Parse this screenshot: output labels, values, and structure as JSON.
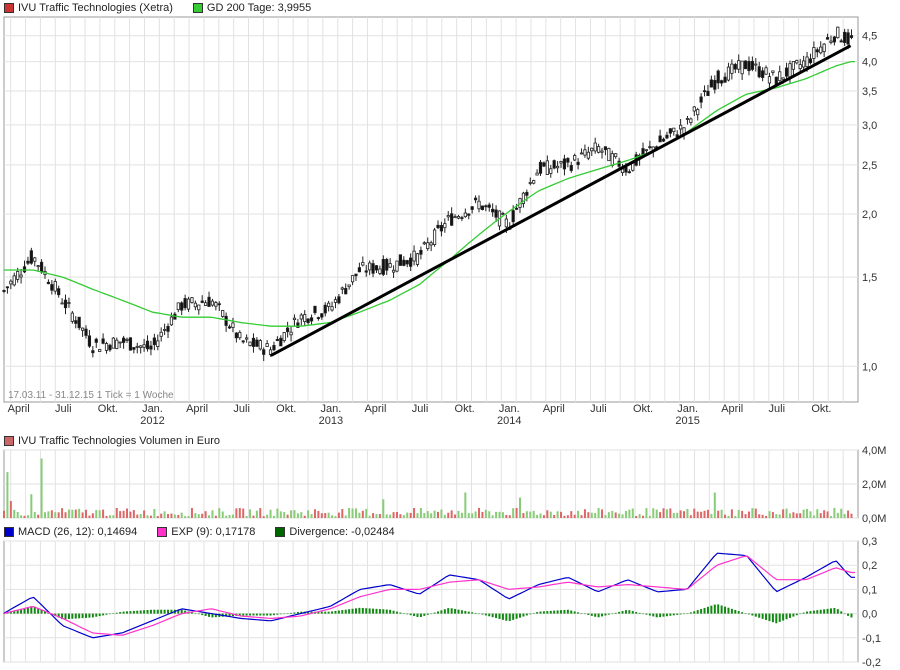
{
  "legends": {
    "price": [
      {
        "label": "IVU Traffic Technologies (Xetra)",
        "color": "#cc3333"
      },
      {
        "label": "GD 200 Tage: 3,9955",
        "color": "#33cc33"
      }
    ],
    "volume": [
      {
        "label": "IVU Traffic Technologies Volumen in Euro",
        "color": "#cc6666"
      }
    ],
    "macd": [
      {
        "label": "MACD (26, 12): 0,14694",
        "color": "#0000cc"
      },
      {
        "label": "EXP (9): 0,17178",
        "color": "#ff33cc"
      },
      {
        "label": "Divergence: -0,02484",
        "color": "#006600"
      }
    ]
  },
  "period_note": "17.03.11 - 31.12.15   1 Tick = 1 Woche",
  "x_ticks": [
    {
      "label": "April",
      "year": ""
    },
    {
      "label": "Juli",
      "year": ""
    },
    {
      "label": "Okt.",
      "year": ""
    },
    {
      "label": "Jan.",
      "year": "2012"
    },
    {
      "label": "April",
      "year": ""
    },
    {
      "label": "Juli",
      "year": ""
    },
    {
      "label": "Okt.",
      "year": ""
    },
    {
      "label": "Jan.",
      "year": "2013"
    },
    {
      "label": "April",
      "year": ""
    },
    {
      "label": "Juli",
      "year": ""
    },
    {
      "label": "Okt.",
      "year": ""
    },
    {
      "label": "Jan.",
      "year": "2014"
    },
    {
      "label": "April",
      "year": ""
    },
    {
      "label": "Juli",
      "year": ""
    },
    {
      "label": "Okt.",
      "year": ""
    },
    {
      "label": "Jan.",
      "year": "2015"
    },
    {
      "label": "April",
      "year": ""
    },
    {
      "label": "Juli",
      "year": ""
    },
    {
      "label": "Okt.",
      "year": ""
    }
  ],
  "chart_data": [
    {
      "type": "line",
      "title": "IVU Traffic Technologies (Xetra)",
      "y_scale": "log",
      "ylim": [
        0.85,
        4.9
      ],
      "y_ticks": [
        "1,0",
        "1,5",
        "2,0",
        "2,5",
        "3,0",
        "3,5",
        "4,0",
        "4,5"
      ],
      "y_tick_values": [
        1.0,
        1.5,
        2.0,
        2.5,
        3.0,
        3.5,
        4.0,
        4.5
      ],
      "x": [
        "2011-03",
        "2011-05",
        "2011-07",
        "2011-09",
        "2011-11",
        "2012-01",
        "2012-03",
        "2012-05",
        "2012-07",
        "2012-09",
        "2012-11",
        "2013-01",
        "2013-03",
        "2013-05",
        "2013-07",
        "2013-09",
        "2013-11",
        "2014-01",
        "2014-03",
        "2014-05",
        "2014-07",
        "2014-09",
        "2014-11",
        "2015-01",
        "2015-03",
        "2015-05",
        "2015-07",
        "2015-09",
        "2015-11",
        "2015-12"
      ],
      "series": [
        {
          "name": "IVU Traffic Technologies (Xetra)",
          "values": [
            1.4,
            1.65,
            1.35,
            1.1,
            1.12,
            1.08,
            1.32,
            1.35,
            1.12,
            1.08,
            1.25,
            1.3,
            1.55,
            1.58,
            1.65,
            1.95,
            2.1,
            1.9,
            2.45,
            2.5,
            2.7,
            2.45,
            2.75,
            3.0,
            3.7,
            3.95,
            3.7,
            4.0,
            4.55,
            4.4
          ]
        },
        {
          "name": "GD 200 Tage",
          "values": [
            1.55,
            1.55,
            1.5,
            1.42,
            1.35,
            1.28,
            1.25,
            1.25,
            1.22,
            1.2,
            1.2,
            1.22,
            1.28,
            1.35,
            1.45,
            1.62,
            1.82,
            2.02,
            2.22,
            2.35,
            2.45,
            2.55,
            2.68,
            2.9,
            3.2,
            3.45,
            3.55,
            3.7,
            3.92,
            4.0
          ]
        }
      ],
      "trendline": {
        "from": [
          "2012-09",
          1.05
        ],
        "to": [
          "2015-12",
          4.3
        ]
      }
    },
    {
      "type": "bar",
      "title": "IVU Traffic Technologies Volumen in Euro",
      "ylim": [
        0,
        4.0
      ],
      "y_ticks": [
        "0,0M",
        "2,0M",
        "4,0M"
      ],
      "y_tick_values": [
        0,
        2,
        4
      ],
      "spikes": [
        {
          "x": "2011-03",
          "value": 2.7
        },
        {
          "x": "2011-04",
          "value": 1.0
        },
        {
          "x": "2011-05",
          "value": 1.4
        },
        {
          "x": "2011-06",
          "value": 3.5
        },
        {
          "x": "2013-05",
          "value": 1.1
        },
        {
          "x": "2013-10",
          "value": 1.5
        },
        {
          "x": "2014-02",
          "value": 1.2
        },
        {
          "x": "2015-03",
          "value": 1.5
        },
        {
          "x": "2015-05",
          "value": 1.3
        }
      ],
      "typical_value": 0.35
    },
    {
      "type": "line",
      "title": "MACD",
      "ylim": [
        -0.2,
        0.3
      ],
      "y_ticks": [
        "-0,2",
        "-0,1",
        "0,0",
        "0,1",
        "0,2",
        "0,3"
      ],
      "y_tick_values": [
        -0.2,
        -0.1,
        0.0,
        0.1,
        0.2,
        0.3
      ],
      "x": [
        "2011-03",
        "2011-05",
        "2011-07",
        "2011-09",
        "2011-11",
        "2012-01",
        "2012-03",
        "2012-05",
        "2012-07",
        "2012-09",
        "2012-11",
        "2013-01",
        "2013-03",
        "2013-05",
        "2013-07",
        "2013-09",
        "2013-11",
        "2014-01",
        "2014-03",
        "2014-05",
        "2014-07",
        "2014-09",
        "2014-11",
        "2015-01",
        "2015-03",
        "2015-05",
        "2015-07",
        "2015-09",
        "2015-11",
        "2015-12"
      ],
      "series": [
        {
          "name": "MACD (26, 12)",
          "values": [
            0.0,
            0.07,
            -0.05,
            -0.1,
            -0.08,
            -0.03,
            0.02,
            0.0,
            -0.02,
            -0.03,
            0.0,
            0.03,
            0.1,
            0.12,
            0.08,
            0.16,
            0.14,
            0.06,
            0.12,
            0.15,
            0.09,
            0.14,
            0.09,
            0.1,
            0.25,
            0.24,
            0.09,
            0.15,
            0.22,
            0.15
          ]
        },
        {
          "name": "EXP (9)",
          "values": [
            0.0,
            0.03,
            -0.02,
            -0.08,
            -0.09,
            -0.05,
            0.0,
            0.02,
            -0.01,
            -0.02,
            -0.01,
            0.02,
            0.07,
            0.1,
            0.1,
            0.13,
            0.14,
            0.1,
            0.11,
            0.13,
            0.11,
            0.12,
            0.11,
            0.1,
            0.2,
            0.24,
            0.14,
            0.14,
            0.19,
            0.17
          ]
        }
      ]
    }
  ]
}
